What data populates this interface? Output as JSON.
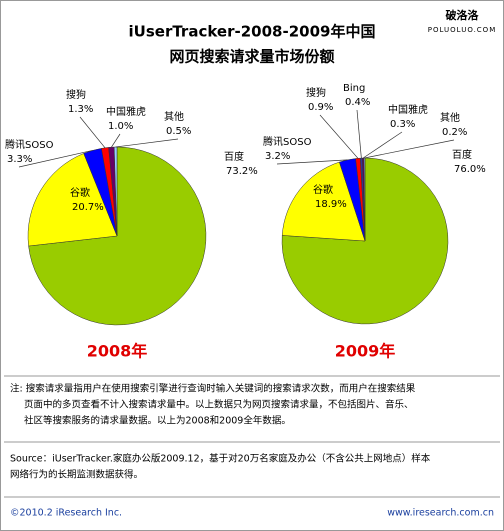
{
  "header": {
    "title": "iUserTracker-2008-2009年中国",
    "subtitle": "网页搜索请求量市场份额"
  },
  "watermark": {
    "line1": "破洛洛",
    "line2": "POLUOLUO.COM"
  },
  "chart_data": [
    {
      "type": "pie",
      "title": "2008年",
      "categories": [
        "百度",
        "谷歌",
        "腾讯SOSO",
        "搜狗",
        "中国雅虎",
        "其他"
      ],
      "values": [
        73.2,
        20.7,
        3.3,
        1.3,
        1.0,
        0.5
      ],
      "value_labels": [
        "73.2%",
        "20.7%",
        "3.3%",
        "1.3%",
        "1.0%",
        "0.5%"
      ],
      "colors": [
        "#99cc00",
        "#ffff00",
        "#0000ff",
        "#ff0000",
        "#660066",
        "#99ccff"
      ]
    },
    {
      "type": "pie",
      "title": "2009年",
      "categories": [
        "百度",
        "谷歌",
        "腾讯SOSO",
        "搜狗",
        "Bing",
        "中国雅虎",
        "其他"
      ],
      "values": [
        76.0,
        18.9,
        3.2,
        0.9,
        0.4,
        0.3,
        0.2
      ],
      "value_labels": [
        "76.0%",
        "18.9%",
        "3.2%",
        "0.9%",
        "0.4%",
        "0.3%",
        "0.2%"
      ],
      "colors": [
        "#99cc00",
        "#ffff00",
        "#0000ff",
        "#ff0000",
        "#333399",
        "#660066",
        "#99ccff"
      ]
    }
  ],
  "note": [
    "注: 搜索请求量指用户在使用搜索引擎进行查询时输入关键词的搜索请求次数，而用户在搜索结果",
    "页面中的多页查看不计入搜索请求量中。以上数据只为网页搜索请求量，不包括图片、音乐、",
    "社区等搜索服务的请求量数据。以上为2008和2009全年数据。"
  ],
  "source": [
    "Source：iUserTracker.家庭办公版2009.12，基于对20万名家庭及办公（不含公共上网地点）样本",
    "网络行为的长期监测数据获得。"
  ],
  "footer": {
    "left": "©2010.2 iResearch Inc.",
    "right": "www.iresearch.com.cn"
  }
}
